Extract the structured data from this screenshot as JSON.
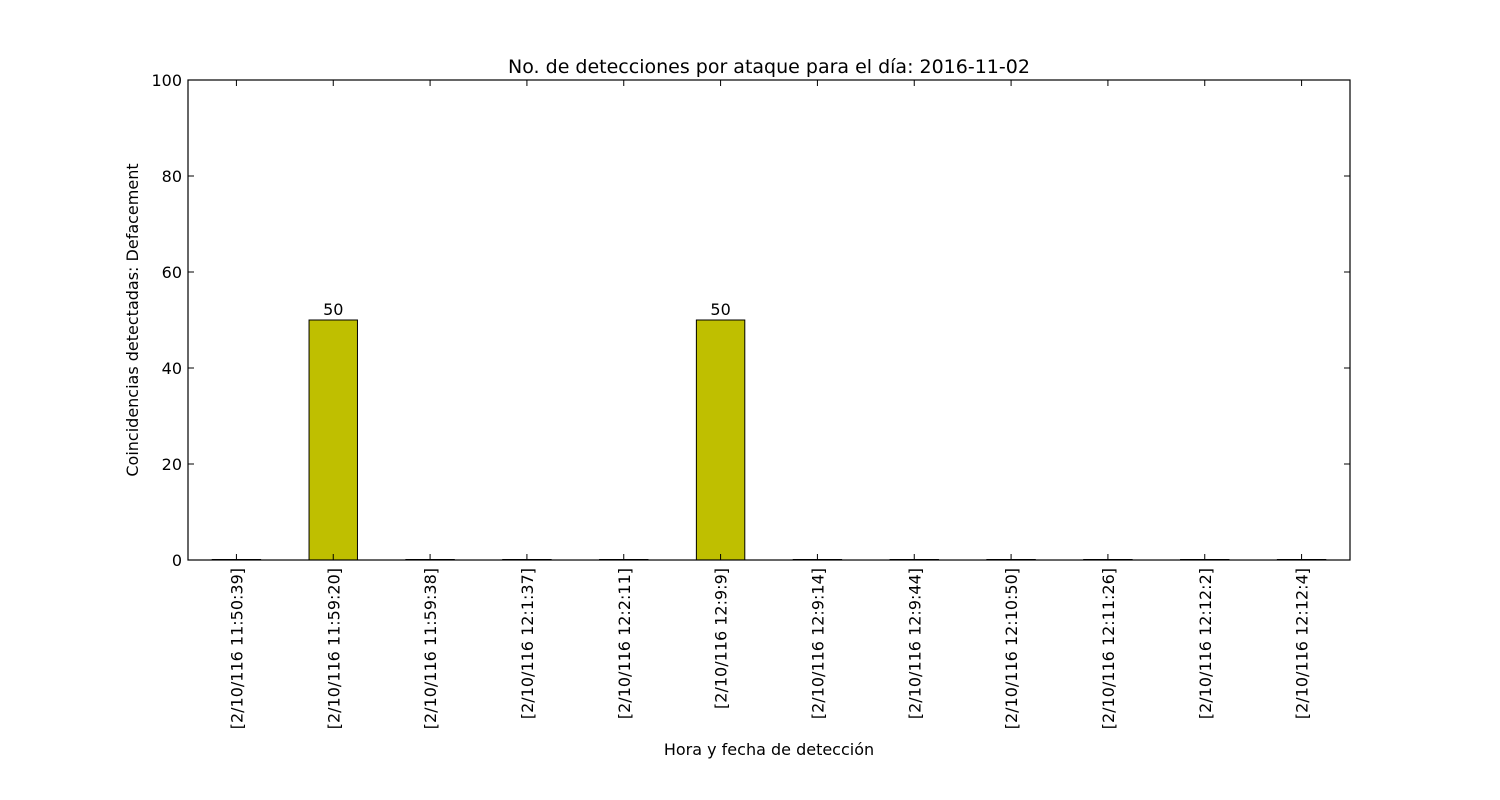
{
  "chart_data": {
    "type": "bar",
    "title": "No. de detecciones por ataque para el día: 2016-11-02",
    "xlabel": "Hora y fecha de detección",
    "ylabel": "Coincidencias detectadas: Defacement",
    "categories": [
      "[2/10/116 11:50:39]",
      "[2/10/116 11:59:20]",
      "[2/10/116 11:59:38]",
      "[2/10/116 12:1:37]",
      "[2/10/116 12:2:11]",
      "[2/10/116 12:9:9]",
      "[2/10/116 12:9:14]",
      "[2/10/116 12:9:44]",
      "[2/10/116 12:10:50]",
      "[2/10/116 12:11:26]",
      "[2/10/116 12:12:2]",
      "[2/10/116 12:12:4]"
    ],
    "values": [
      0,
      50,
      0,
      0,
      0,
      50,
      0,
      0,
      0,
      0,
      0,
      0
    ],
    "data_labels": [
      "",
      "50",
      "",
      "",
      "",
      "50",
      "",
      "",
      "",
      "",
      "",
      ""
    ],
    "ylim": [
      0,
      100
    ],
    "yticks": [
      "0",
      "20",
      "40",
      "60",
      "80",
      "100"
    ],
    "grid": false,
    "bar_color": "#bfbf00",
    "edge_color": "#000000"
  }
}
